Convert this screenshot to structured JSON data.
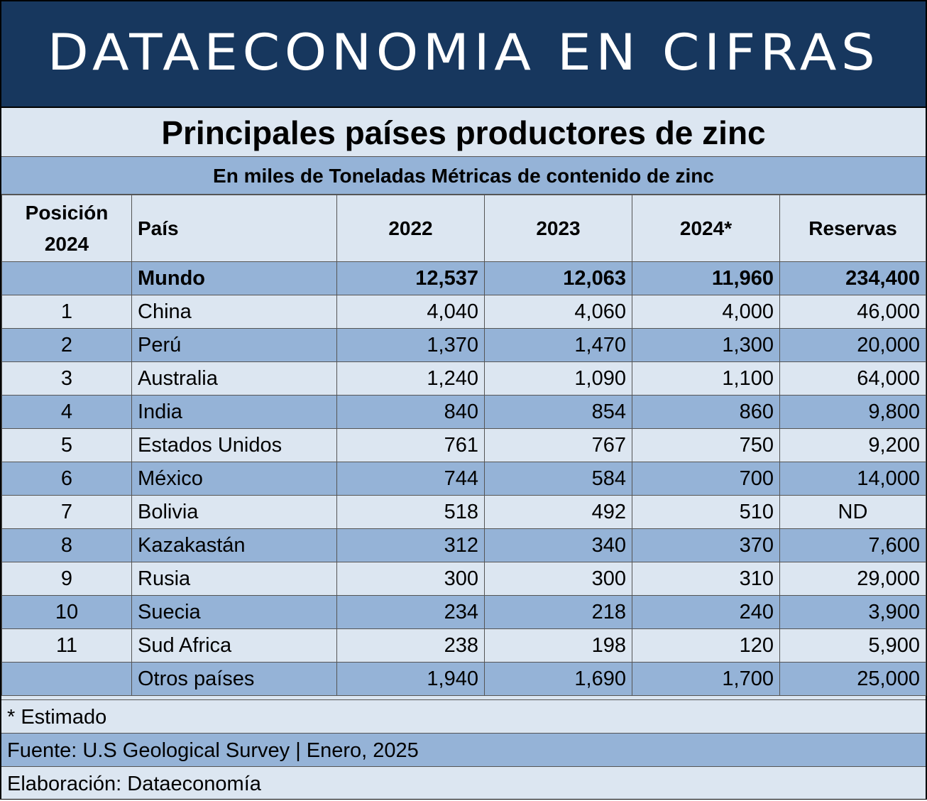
{
  "banner": "DATAECONOMIA EN CIFRAS",
  "chart_data": {
    "type": "table",
    "title": "Principales países productores de zinc",
    "subtitle": "En miles de Toneladas Métricas de contenido de zinc",
    "columns": [
      "Posición 2024",
      "País",
      "2022",
      "2023",
      "2024*",
      "Reservas"
    ],
    "column_lines": [
      [
        "Posición",
        "2024"
      ],
      [
        "País"
      ],
      [
        "2022"
      ],
      [
        "2023"
      ],
      [
        "2024*"
      ],
      [
        "Reservas"
      ]
    ],
    "rows": [
      [
        "",
        "Mundo",
        "12,537",
        "12,063",
        "11,960",
        "234,400"
      ],
      [
        "1",
        "China",
        "4,040",
        "4,060",
        "4,000",
        "46,000"
      ],
      [
        "2",
        "Perú",
        "1,370",
        "1,470",
        "1,300",
        "20,000"
      ],
      [
        "3",
        "Australia",
        "1,240",
        "1,090",
        "1,100",
        "64,000"
      ],
      [
        "4",
        "India",
        "840",
        "854",
        "860",
        "9,800"
      ],
      [
        "5",
        "Estados Unidos",
        "761",
        "767",
        "750",
        "9,200"
      ],
      [
        "6",
        "México",
        "744",
        "584",
        "700",
        "14,000"
      ],
      [
        "7",
        "Bolivia",
        "518",
        "492",
        "510",
        "ND"
      ],
      [
        "8",
        "Kazakastán",
        "312",
        "340",
        "370",
        "7,600"
      ],
      [
        "9",
        "Rusia",
        "300",
        "300",
        "310",
        "29,000"
      ],
      [
        "10",
        "Suecia",
        "234",
        "218",
        "240",
        "3,900"
      ],
      [
        "11",
        "Sud Africa",
        "238",
        "198",
        "120",
        "5,900"
      ],
      [
        "",
        "Otros países",
        "1,940",
        "1,690",
        "1,700",
        "25,000"
      ]
    ],
    "row_shading": [
      "dark",
      "light",
      "dark",
      "light",
      "dark",
      "light",
      "dark",
      "light",
      "dark",
      "light",
      "dark",
      "light",
      "dark"
    ],
    "grid": true
  },
  "notes": {
    "estimate": "* Estimado",
    "source": "Fuente: U.S Geological Survey | Enero, 2025",
    "credit": "Elaboración: Dataeconomía"
  },
  "colors": {
    "banner_bg": "#17375e",
    "banner_text": "#ffffff",
    "light_row": "#dce6f1",
    "dark_row": "#95b3d7"
  }
}
